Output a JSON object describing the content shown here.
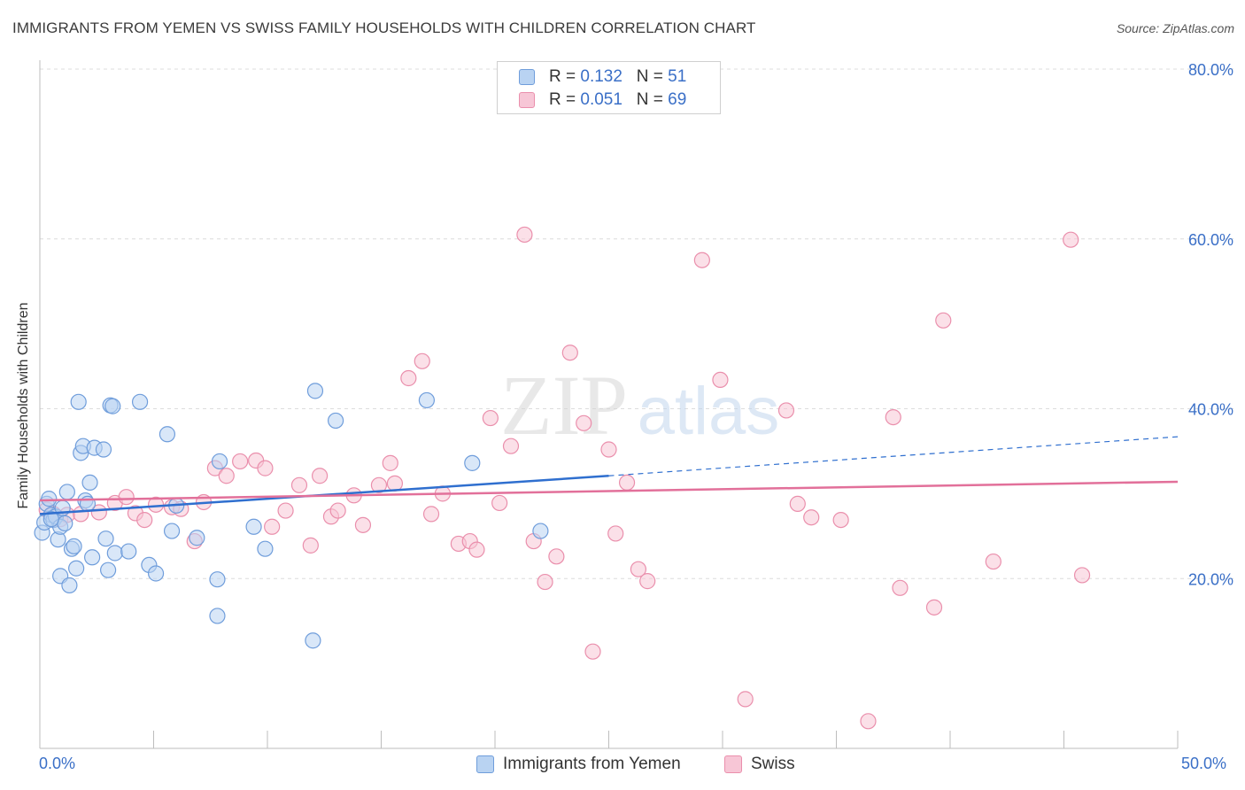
{
  "title": "IMMIGRANTS FROM YEMEN VS SWISS FAMILY HOUSEHOLDS WITH CHILDREN CORRELATION CHART",
  "source": "Source: ZipAtlas.com",
  "watermark": {
    "zip": "ZIP",
    "atlas": "atlas"
  },
  "colors": {
    "blue_fill": "#b9d3f2",
    "blue_stroke": "#6f9ddb",
    "blue_line": "#2f6fcf",
    "pink_fill": "#f7c6d6",
    "pink_stroke": "#ea8fac",
    "pink_line": "#e2709a",
    "axis_text": "#3a6fc7"
  },
  "legend_top": [
    {
      "series": "Immigrants from Yemen",
      "r_label": "R = ",
      "r": "0.132",
      "n_label": "N = ",
      "n": "51"
    },
    {
      "series": "Swiss",
      "r_label": "R = ",
      "r": "0.051",
      "n_label": "N = ",
      "n": "69"
    }
  ],
  "legend_bottom": [
    "Immigrants from Yemen",
    "Swiss"
  ],
  "x_tick_labels": {
    "min": "0.0%",
    "max": "50.0%"
  },
  "chart_data": {
    "type": "scatter",
    "title": "IMMIGRANTS FROM YEMEN VS SWISS FAMILY HOUSEHOLDS WITH CHILDREN CORRELATION CHART",
    "xlabel": "",
    "ylabel": "Family Households with Children",
    "xlim": [
      0,
      50
    ],
    "ylim": [
      0,
      80
    ],
    "y_ticks": [
      {
        "value": 20,
        "label": "20.0%"
      },
      {
        "value": 40,
        "label": "40.0%"
      },
      {
        "value": 60,
        "label": "60.0%"
      },
      {
        "value": 80,
        "label": "80.0%"
      }
    ],
    "grid": true,
    "series": [
      {
        "name": "Immigrants from Yemen",
        "points": [
          [
            0.1,
            25.4
          ],
          [
            0.2,
            26.6
          ],
          [
            0.3,
            28.8
          ],
          [
            0.4,
            29.4
          ],
          [
            0.5,
            27.5
          ],
          [
            0.6,
            26.9
          ],
          [
            0.7,
            27.3
          ],
          [
            0.8,
            24.6
          ],
          [
            0.9,
            26.1
          ],
          [
            1.0,
            28.3
          ],
          [
            1.1,
            26.5
          ],
          [
            0.9,
            20.3
          ],
          [
            1.2,
            30.2
          ],
          [
            1.3,
            19.2
          ],
          [
            1.4,
            23.5
          ],
          [
            1.5,
            23.8
          ],
          [
            1.6,
            21.2
          ],
          [
            1.7,
            40.8
          ],
          [
            1.8,
            34.8
          ],
          [
            1.9,
            35.6
          ],
          [
            2.0,
            29.2
          ],
          [
            2.1,
            28.8
          ],
          [
            2.2,
            31.3
          ],
          [
            2.3,
            22.5
          ],
          [
            2.4,
            35.4
          ],
          [
            2.8,
            35.2
          ],
          [
            2.9,
            24.7
          ],
          [
            3.0,
            21.0
          ],
          [
            3.1,
            40.4
          ],
          [
            3.2,
            40.3
          ],
          [
            3.3,
            23.0
          ],
          [
            3.9,
            23.2
          ],
          [
            4.4,
            40.8
          ],
          [
            4.8,
            21.6
          ],
          [
            5.1,
            20.6
          ],
          [
            5.6,
            37.0
          ],
          [
            5.8,
            25.6
          ],
          [
            6.0,
            28.6
          ],
          [
            6.9,
            24.8
          ],
          [
            7.8,
            15.6
          ],
          [
            7.8,
            19.9
          ],
          [
            7.9,
            33.8
          ],
          [
            9.4,
            26.1
          ],
          [
            9.9,
            23.5
          ],
          [
            12.0,
            12.7
          ],
          [
            12.1,
            42.1
          ],
          [
            13.0,
            38.6
          ],
          [
            17.0,
            41.0
          ],
          [
            19.0,
            33.6
          ],
          [
            22.0,
            25.6
          ],
          [
            0.5,
            27.0
          ]
        ],
        "trend": {
          "x": [
            0,
            25,
            50
          ],
          "y": [
            27.6,
            32.1,
            36.7
          ],
          "solid_until_x": 25
        }
      },
      {
        "name": "Swiss",
        "points": [
          [
            0.3,
            28.1
          ],
          [
            0.6,
            27.6
          ],
          [
            0.9,
            27.0
          ],
          [
            1.2,
            27.5
          ],
          [
            1.8,
            27.6
          ],
          [
            2.6,
            27.8
          ],
          [
            3.3,
            28.9
          ],
          [
            3.8,
            29.6
          ],
          [
            4.2,
            27.7
          ],
          [
            4.6,
            26.9
          ],
          [
            5.1,
            28.7
          ],
          [
            5.8,
            28.4
          ],
          [
            6.2,
            28.2
          ],
          [
            6.8,
            24.4
          ],
          [
            7.2,
            29.0
          ],
          [
            7.7,
            33.0
          ],
          [
            8.2,
            32.1
          ],
          [
            8.8,
            33.8
          ],
          [
            9.5,
            33.9
          ],
          [
            9.9,
            33.0
          ],
          [
            10.2,
            26.1
          ],
          [
            10.8,
            28.0
          ],
          [
            11.4,
            31.0
          ],
          [
            11.9,
            23.9
          ],
          [
            12.3,
            32.1
          ],
          [
            12.8,
            27.3
          ],
          [
            13.1,
            28.0
          ],
          [
            13.8,
            29.8
          ],
          [
            14.2,
            26.3
          ],
          [
            14.9,
            31.0
          ],
          [
            15.4,
            33.6
          ],
          [
            15.6,
            31.2
          ],
          [
            16.2,
            43.6
          ],
          [
            16.8,
            45.6
          ],
          [
            17.2,
            27.6
          ],
          [
            17.7,
            30.0
          ],
          [
            18.4,
            24.1
          ],
          [
            18.9,
            24.4
          ],
          [
            19.2,
            23.4
          ],
          [
            19.8,
            38.9
          ],
          [
            20.2,
            28.9
          ],
          [
            20.7,
            35.6
          ],
          [
            21.3,
            60.5
          ],
          [
            21.7,
            24.4
          ],
          [
            22.2,
            19.6
          ],
          [
            22.7,
            22.6
          ],
          [
            23.3,
            46.6
          ],
          [
            23.9,
            38.3
          ],
          [
            24.3,
            11.4
          ],
          [
            25.0,
            35.2
          ],
          [
            25.3,
            25.3
          ],
          [
            25.8,
            31.3
          ],
          [
            26.3,
            21.1
          ],
          [
            26.7,
            19.7
          ],
          [
            29.1,
            57.5
          ],
          [
            29.9,
            43.4
          ],
          [
            31.0,
            5.8
          ],
          [
            32.8,
            39.8
          ],
          [
            33.3,
            28.8
          ],
          [
            33.9,
            27.2
          ],
          [
            35.2,
            26.9
          ],
          [
            36.4,
            3.2
          ],
          [
            37.5,
            39.0
          ],
          [
            37.8,
            18.9
          ],
          [
            39.3,
            16.6
          ],
          [
            39.7,
            50.4
          ],
          [
            41.9,
            22.0
          ],
          [
            45.3,
            59.9
          ],
          [
            45.8,
            20.4
          ]
        ],
        "trend": {
          "x": [
            0,
            50
          ],
          "y": [
            29.2,
            31.4
          ]
        }
      }
    ]
  }
}
